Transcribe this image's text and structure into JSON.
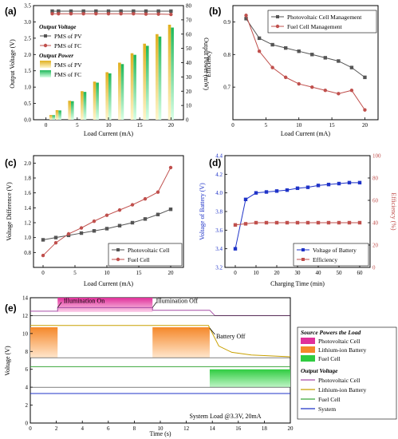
{
  "panels": {
    "a": {
      "label": "(a)",
      "xlabel": "Load Current (mA)",
      "ylabel_left": "Output Voltage (V)",
      "ylabel_right": "Output Power (mW)",
      "xlim": [
        -2,
        22
      ],
      "ylim_left": [
        0,
        3.5
      ],
      "ylim_right": [
        0,
        80
      ],
      "xticks": [
        0,
        5,
        10,
        15,
        20
      ],
      "yticks_left": [
        0.0,
        0.5,
        1.0,
        1.5,
        2.0,
        2.5,
        3.0,
        3.5
      ],
      "yticks_right": [
        0,
        10,
        20,
        30,
        40,
        50,
        60,
        70,
        80
      ],
      "legend_voltage_title": "Output Voltage",
      "legend_power_title": "Output Power",
      "x": [
        1,
        2,
        4,
        6,
        8,
        10,
        12,
        14,
        16,
        18,
        20
      ],
      "voltage_series": [
        {
          "name": "PMS of PV",
          "color": "#555555",
          "values": [
            3.33,
            3.33,
            3.33,
            3.33,
            3.33,
            3.33,
            3.33,
            3.33,
            3.33,
            3.33,
            3.33
          ]
        },
        {
          "name": "PMS of FC",
          "color": "#c0504d",
          "values": [
            3.25,
            3.25,
            3.25,
            3.25,
            3.25,
            3.25,
            3.25,
            3.25,
            3.24,
            3.24,
            3.23
          ]
        }
      ],
      "power_series": [
        {
          "name": "PMS of PV",
          "color": "#d4a017",
          "values": [
            3.3,
            6.7,
            13.3,
            20.0,
            26.7,
            33.3,
            40.0,
            46.6,
            53.3,
            60.0,
            66.6
          ]
        },
        {
          "name": "PMS of FC",
          "color": "#2fb86a",
          "values": [
            3.2,
            6.5,
            13.0,
            19.5,
            26.0,
            32.5,
            39.0,
            45.5,
            51.8,
            58.3,
            64.6
          ]
        }
      ]
    },
    "b": {
      "label": "(b)",
      "xlabel": "Load Current (mA)",
      "ylabel": "Efficiency",
      "xlim": [
        0,
        22
      ],
      "ylim": [
        0.6,
        0.95
      ],
      "xticks": [
        0,
        5,
        10,
        15,
        20
      ],
      "yticks": [
        0.7,
        0.8,
        0.9
      ],
      "series": [
        {
          "name": "Photovoltaic Cell Management",
          "color": "#555555",
          "marker": "square",
          "x": [
            2,
            4,
            6,
            8,
            10,
            12,
            14,
            16,
            18,
            20
          ],
          "y": [
            0.91,
            0.85,
            0.83,
            0.82,
            0.81,
            0.8,
            0.79,
            0.78,
            0.76,
            0.73
          ]
        },
        {
          "name": "Fuel Cell Management",
          "color": "#c0504d",
          "marker": "circle",
          "x": [
            2,
            4,
            6,
            8,
            10,
            12,
            14,
            16,
            18,
            20
          ],
          "y": [
            0.92,
            0.81,
            0.76,
            0.73,
            0.71,
            0.7,
            0.69,
            0.68,
            0.69,
            0.63
          ]
        }
      ]
    },
    "c": {
      "label": "(c)",
      "xlabel": "Load Current (mA)",
      "ylabel": "Voltage Difference (V)",
      "xlim": [
        -1.5,
        22
      ],
      "ylim": [
        0.6,
        2.1
      ],
      "xticks": [
        0,
        5,
        10,
        15,
        20
      ],
      "yticks": [
        0.8,
        1.0,
        1.2,
        1.4,
        1.6,
        1.8,
        2.0
      ],
      "series": [
        {
          "name": "Photovoltaic Cell",
          "color": "#555555",
          "marker": "square",
          "x": [
            0,
            2,
            4,
            6,
            8,
            10,
            12,
            14,
            16,
            18,
            20
          ],
          "y": [
            0.97,
            1.0,
            1.03,
            1.06,
            1.09,
            1.12,
            1.16,
            1.2,
            1.25,
            1.31,
            1.38
          ]
        },
        {
          "name": "Fuel Cell",
          "color": "#c0504d",
          "marker": "circle",
          "x": [
            0,
            2,
            4,
            6,
            8,
            10,
            12,
            14,
            16,
            18,
            20
          ],
          "y": [
            0.76,
            0.93,
            1.05,
            1.13,
            1.22,
            1.3,
            1.37,
            1.44,
            1.52,
            1.61,
            1.94
          ]
        }
      ]
    },
    "d": {
      "label": "(d)",
      "xlabel": "Charging Time (min)",
      "ylabel_left": "Voltage of Battery (V)",
      "ylabel_right": "Efficiency (%)",
      "xlim": [
        -5,
        65
      ],
      "ylim_left": [
        3.2,
        4.4
      ],
      "ylim_right": [
        0,
        100
      ],
      "xticks": [
        0,
        10,
        20,
        30,
        40,
        50,
        60
      ],
      "yticks_left": [
        3.2,
        3.4,
        3.6,
        3.8,
        4.0,
        4.2,
        4.4
      ],
      "yticks_right": [
        0,
        20,
        40,
        60,
        80,
        100
      ],
      "series": [
        {
          "name": "Voltage of Battery",
          "color": "#1f33c8",
          "marker": "square",
          "axis": "left",
          "x": [
            0,
            5,
            10,
            15,
            20,
            25,
            30,
            35,
            40,
            45,
            50,
            55,
            60
          ],
          "y": [
            3.4,
            3.93,
            4.0,
            4.01,
            4.02,
            4.03,
            4.05,
            4.06,
            4.08,
            4.09,
            4.1,
            4.11,
            4.11
          ]
        },
        {
          "name": "Efficiency",
          "color": "#c0504d",
          "marker": "square",
          "axis": "right",
          "x": [
            0,
            5,
            10,
            15,
            20,
            25,
            30,
            35,
            40,
            45,
            50,
            55,
            60
          ],
          "y": [
            38,
            39,
            40,
            40,
            40,
            40,
            40,
            40,
            40,
            40,
            40,
            40,
            40
          ]
        }
      ]
    },
    "e": {
      "label": "(e)",
      "xlabel": "Time (s)",
      "ylabel": "Voltage (V)",
      "xlim": [
        0,
        20
      ],
      "ylim": [
        0,
        14
      ],
      "xticks": [
        0,
        2,
        4,
        6,
        8,
        10,
        12,
        14,
        16,
        18,
        20
      ],
      "yticks": [
        0,
        2,
        4,
        6,
        8,
        10,
        12,
        14
      ],
      "annotations": [
        {
          "text": "Illumination On",
          "x": 2.2,
          "y": 13.7
        },
        {
          "text": "Illumination Off",
          "x": 9.3,
          "y": 13.7
        },
        {
          "text": "Battery Off",
          "x": 13.8,
          "y": 9.7
        },
        {
          "text": "System Load @3.3V, 20mA",
          "x": 15.0,
          "y": 0.8
        }
      ],
      "source_title": "Source Powers the Load",
      "source_series": [
        {
          "name": "Photovoltaic Cell",
          "color": "#e0309a",
          "t_start": 2.1,
          "t_end": 9.4,
          "y_low": 12.4,
          "y_high": 14.0
        },
        {
          "name": "Lithium-ion Battery",
          "color": "#f5882a",
          "t_start_1": 0.0,
          "t_end_1": 2.1,
          "t_start_2": 9.4,
          "t_end_2": 13.8,
          "y_low": 7.3,
          "y_high": 10.7
        },
        {
          "name": "Fuel Cell",
          "color": "#2fcc40",
          "t_start": 13.8,
          "t_end": 20.0,
          "y_low": 4.0,
          "y_high": 6.0
        }
      ],
      "output_title": "Output Voltage",
      "output_series": [
        {
          "name": "Photovoltaic Cell",
          "color": "#a64ca6",
          "level": 12.4
        },
        {
          "name": "Lithium-ion Battery",
          "color": "#c8a000",
          "level": 10.9
        },
        {
          "name": "Fuel Cell",
          "color": "#3aa63a",
          "level": 6.3
        },
        {
          "name": "System",
          "color": "#1f33c8",
          "level": 3.3
        }
      ]
    }
  }
}
